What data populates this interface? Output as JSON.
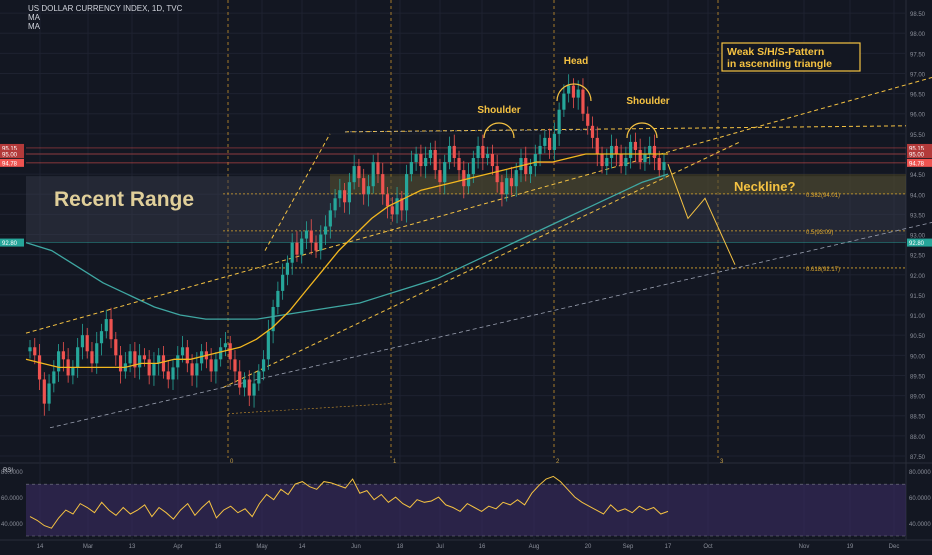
{
  "header": {
    "title": "US DOLLAR CURRENCY INDEX, 1D, TVC",
    "indicators": [
      "MA",
      "MA"
    ]
  },
  "colors": {
    "background": "#131722",
    "grid": "#1e2230",
    "candle_up": "#26a69a",
    "candle_down": "#ef5350",
    "ma_fast": "#f2b71f",
    "ma_slow": "#3fa7a2",
    "annotation": "#f5c242",
    "rsi_line": "#f5c242",
    "rsi_band": "#3b2b63"
  },
  "annotations": {
    "box": [
      "Weak S/H/S-Pattern",
      "in ascending triangle"
    ],
    "head": "Head",
    "shoulder_left": "Shoulder",
    "shoulder_right": "Shoulder",
    "range": "Recent Range",
    "neckline": "Neckline?"
  },
  "chart_data": {
    "type": "candlestick",
    "title": "US DOLLAR CURRENCY INDEX, 1D, TVC",
    "y_ticks": [
      "98.50",
      "98.00",
      "97.50",
      "97.00",
      "96.50",
      "96.00",
      "95.50",
      "95.00",
      "94.50",
      "94.00",
      "93.50",
      "93.00",
      "92.50",
      "92.00",
      "91.50",
      "91.00",
      "90.50",
      "90.00",
      "89.50",
      "89.00",
      "88.50",
      "88.00",
      "87.50"
    ],
    "ylim": [
      87.4,
      98.75
    ],
    "x_ticks": [
      "14",
      "Mar",
      "13",
      "Apr",
      "16",
      "May",
      "14",
      "Jun",
      "18",
      "Jul",
      "16",
      "Aug",
      "20",
      "Sep",
      "17",
      "Oct",
      "Nov",
      "19",
      "Dec"
    ],
    "price_labels": [
      {
        "label": "95.15",
        "kind": "resistance"
      },
      {
        "label": "95.00",
        "kind": "resistance"
      },
      {
        "label": "94.78",
        "kind": "last"
      },
      {
        "label": "92.80",
        "kind": "support"
      }
    ],
    "fib_levels": [
      {
        "label": "0.382(94.01)",
        "value": 94.01
      },
      {
        "label": "0.5(93.09)",
        "value": 93.09
      },
      {
        "label": "0.618(92.17)",
        "value": 92.17
      }
    ],
    "cycle_labels": [
      "0",
      "1",
      "2",
      "3"
    ],
    "closes": [
      90.2,
      90.0,
      89.4,
      88.8,
      89.3,
      89.6,
      90.1,
      89.9,
      89.5,
      89.7,
      90.2,
      90.5,
      90.1,
      89.8,
      90.3,
      90.6,
      90.9,
      90.4,
      90.0,
      89.6,
      89.8,
      90.1,
      89.7,
      90.0,
      89.9,
      89.5,
      89.8,
      90.0,
      89.6,
      89.4,
      89.7,
      90.0,
      90.2,
      89.8,
      89.5,
      89.8,
      90.1,
      89.9,
      89.6,
      89.9,
      90.2,
      90.3,
      89.9,
      89.6,
      89.2,
      89.4,
      89.0,
      89.3,
      89.6,
      89.9,
      90.6,
      91.2,
      91.6,
      92.0,
      92.3,
      92.8,
      92.5,
      92.9,
      93.1,
      92.8,
      92.6,
      93.0,
      93.2,
      93.6,
      93.9,
      94.1,
      93.8,
      94.3,
      94.7,
      94.4,
      94.0,
      94.2,
      94.8,
      94.5,
      94.0,
      93.7,
      93.5,
      93.9,
      93.6,
      94.5,
      94.8,
      95.0,
      94.7,
      94.9,
      95.1,
      94.6,
      94.3,
      94.8,
      95.2,
      94.9,
      94.6,
      94.2,
      94.5,
      94.9,
      95.2,
      94.9,
      95.0,
      94.7,
      94.3,
      94.0,
      94.4,
      94.2,
      94.6,
      94.9,
      94.5,
      94.7,
      95.0,
      95.2,
      95.4,
      95.1,
      95.5,
      96.1,
      96.5,
      96.7,
      96.4,
      96.6,
      96.0,
      95.7,
      95.4,
      95.0,
      94.7,
      94.9,
      95.2,
      95.0,
      94.7,
      94.9,
      95.3,
      95.1,
      94.8,
      95.0,
      95.2,
      94.9,
      94.6,
      94.8
    ],
    "ma_fast": [
      89.9,
      89.8,
      89.7,
      89.7,
      89.7,
      89.7,
      89.7,
      89.8,
      89.8,
      89.9,
      89.9,
      90.0,
      90.1,
      90.2,
      90.4,
      90.7,
      91.1,
      91.6,
      92.1,
      92.6,
      93.0,
      93.4,
      93.7,
      93.9,
      94.1,
      94.2,
      94.3,
      94.4,
      94.5,
      94.6,
      94.7,
      94.8,
      94.8,
      94.9,
      95.0,
      95.0,
      95.0,
      95.0,
      95.0,
      95.0
    ],
    "ma_slow": [
      92.8,
      92.6,
      92.2,
      91.8,
      91.5,
      91.2,
      91.0,
      90.9,
      90.9,
      90.9,
      91.0,
      91.1,
      91.2,
      91.3,
      91.5,
      91.7,
      91.9,
      92.2,
      92.5,
      92.8,
      93.1,
      93.4,
      93.7,
      94.0,
      94.3,
      94.5
    ],
    "rsi": {
      "label": "RSI",
      "ticks": [
        "80.0000",
        "60.0000",
        "40.0000"
      ],
      "ylim": [
        30,
        84
      ],
      "upper_band": 70,
      "lower_band": 30,
      "values": [
        45,
        42,
        38,
        36,
        44,
        50,
        47,
        55,
        52,
        48,
        56,
        50,
        46,
        52,
        47,
        50,
        54,
        45,
        52,
        48,
        43,
        50,
        55,
        46,
        52,
        57,
        44,
        50,
        53,
        48,
        51,
        45,
        55,
        62,
        58,
        66,
        62,
        70,
        72,
        68,
        66,
        72,
        71,
        69,
        67,
        74,
        63,
        65,
        58,
        62,
        56,
        60,
        55,
        52,
        58,
        56,
        57,
        60,
        54,
        52,
        49,
        55,
        52,
        49,
        53,
        51,
        56,
        54,
        58,
        54,
        63,
        69,
        74,
        76,
        72,
        66,
        60,
        56,
        53,
        50,
        47,
        54,
        49,
        51,
        48,
        53,
        50,
        52,
        47,
        49
      ]
    }
  }
}
